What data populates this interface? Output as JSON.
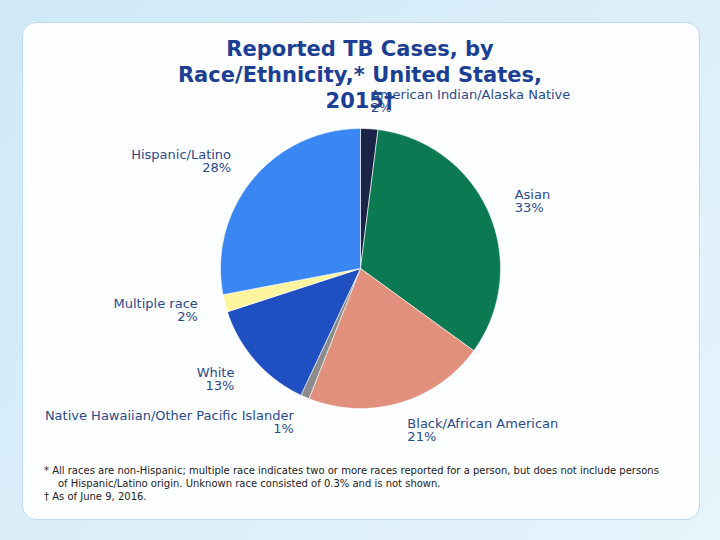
{
  "chart_data": {
    "type": "pie",
    "title": "Reported TB Cases, by Race/Ethnicity,* United States, 2015†",
    "categories": [
      "American Indian/Alaska Native",
      "Asian",
      "Black/African American",
      "Native Hawaiian/Other Pacific Islander",
      "White",
      "Multiple race",
      "Hispanic/Latino"
    ],
    "values": [
      2,
      33,
      21,
      1,
      13,
      2,
      28
    ],
    "value_labels": [
      "2%",
      "33%",
      "21%",
      "1%",
      "13%",
      "2%",
      "28%"
    ],
    "colors": [
      "#1b2347",
      "#0b7a52",
      "#e0907c",
      "#8c8c8c",
      "#1f4fc0",
      "#fff59e",
      "#3a86f2"
    ],
    "data_labels": true,
    "annotations": [
      "* All races are non-Hispanic; multiple race indicates two or more races reported for a person, but does not include persons of Hispanic/Latino origin. Unknown race consisted of 0.3% and is not shown.",
      "† As of June 9, 2016."
    ]
  }
}
